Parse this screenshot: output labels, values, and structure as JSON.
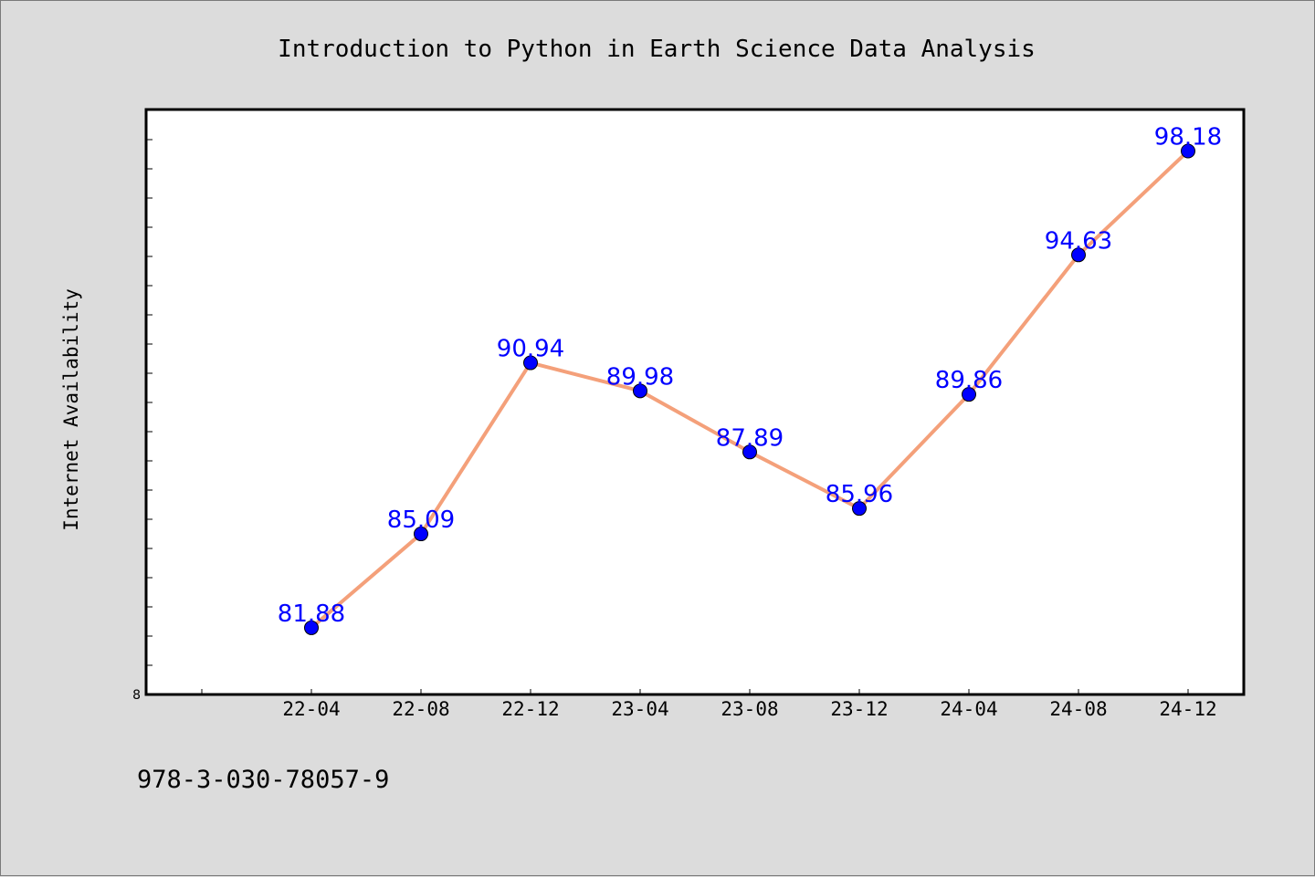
{
  "chart_data": {
    "type": "line",
    "title": "Introduction to Python in Earth Science Data Analysis",
    "xlabel": "",
    "ylabel": "Internet Availability",
    "categories": [
      "22-04",
      "22-08",
      "22-12",
      "23-04",
      "23-08",
      "23-12",
      "24-04",
      "24-08",
      "24-12"
    ],
    "series": [
      {
        "values": [
          81.88,
          85.09,
          90.94,
          89.98,
          87.89,
          85.96,
          89.86,
          94.63,
          98.18
        ]
      }
    ],
    "y_tick_labels": [
      "8"
    ],
    "ylim": [
      79.6,
      99.6
    ],
    "grid": false,
    "colors": {
      "line": "#f4a07a",
      "marker": "#0000ff",
      "data_label": "#0000ff",
      "plot_bg": "#ffffff",
      "page_bg": "#dcdcdc"
    }
  },
  "footer": {
    "isbn": "978-3-030-78057-9"
  }
}
